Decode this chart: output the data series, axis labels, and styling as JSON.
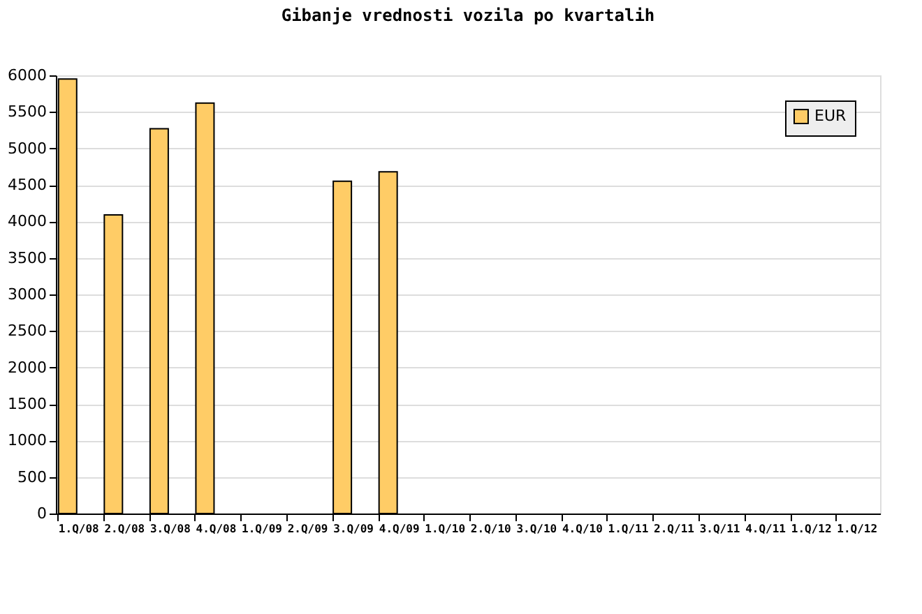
{
  "chart_data": {
    "type": "bar",
    "title": "Gibanje vrednosti vozila po kvartalih",
    "categories": [
      "1.Q/08",
      "2.Q/08",
      "3.Q/08",
      "4.Q/08",
      "1.Q/09",
      "2.Q/09",
      "3.Q/09",
      "4.Q/09",
      "1.Q/10",
      "2.Q/10",
      "3.Q/10",
      "4.Q/10",
      "1.Q/11",
      "2.Q/11",
      "3.Q/11",
      "4.Q/11",
      "1.Q/12",
      "1.Q/12"
    ],
    "series": [
      {
        "name": "EUR",
        "color": "#ffcc66",
        "values": [
          5950,
          4090,
          5270,
          5620,
          null,
          null,
          4550,
          4680,
          null,
          null,
          null,
          null,
          null,
          null,
          null,
          null,
          null,
          null
        ]
      }
    ],
    "ylim": [
      0,
      6000
    ],
    "yticks": [
      0,
      500,
      1000,
      1500,
      2000,
      2500,
      3000,
      3500,
      4000,
      4500,
      5000,
      5500,
      6000
    ],
    "grid": "y",
    "legend": "top right"
  }
}
